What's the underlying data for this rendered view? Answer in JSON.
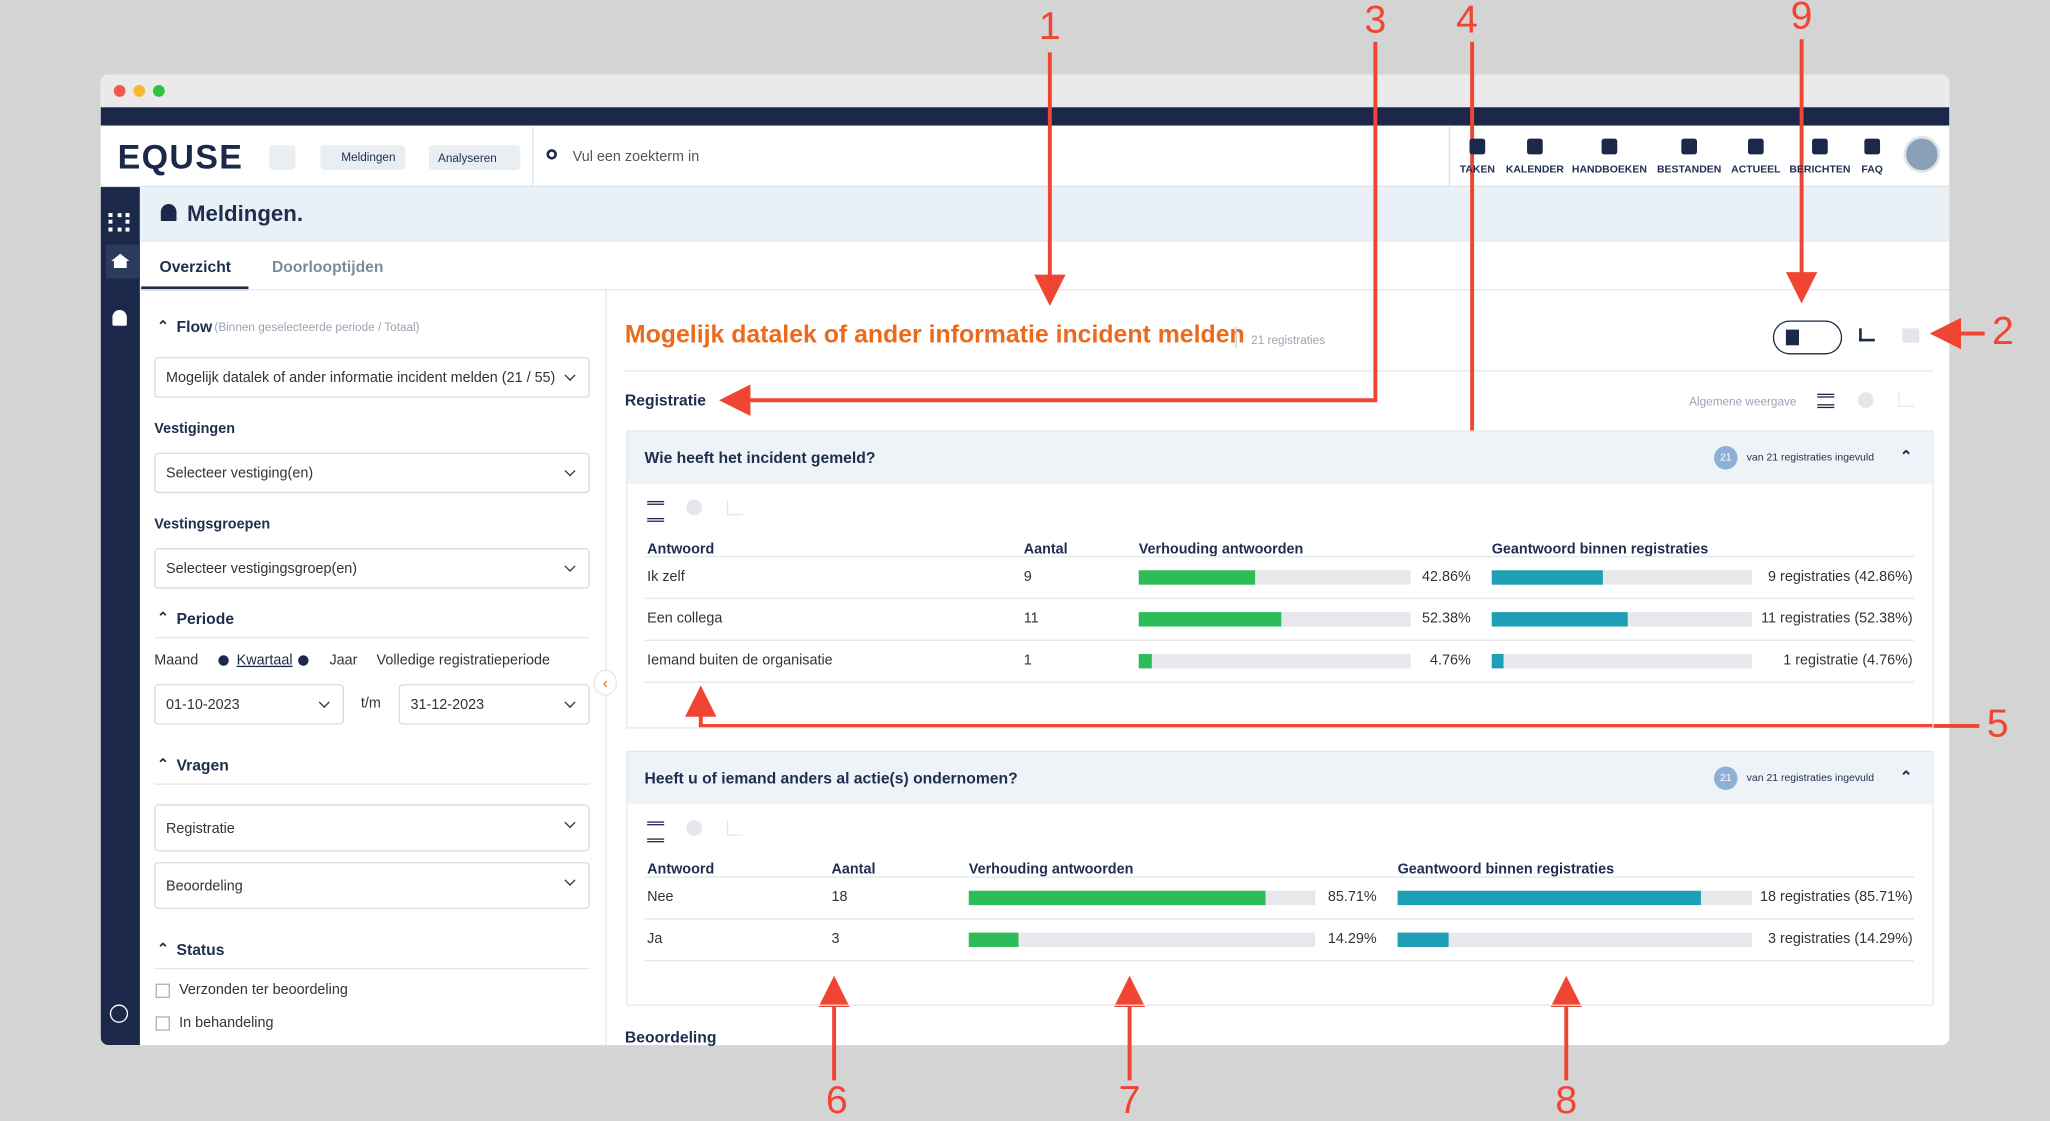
{
  "window": {
    "logo": "EQUSE",
    "breadcrumb": [
      "Meldingen",
      "Analyseren"
    ],
    "search_placeholder": "Vul een zoekterm in",
    "nav": [
      "TAKEN",
      "KALENDER",
      "HANDBOEKEN",
      "BESTANDEN",
      "ACTUEEL",
      "BERICHTEN",
      "FAQ"
    ]
  },
  "page": {
    "title": "Meldingen.",
    "tabs": [
      "Overzicht",
      "Doorlooptijden"
    ]
  },
  "filters": {
    "flow_label": "Flow",
    "flow_note": "(Binnen geselecteerde periode / Totaal)",
    "flow_value": "Mogelijk datalek of ander informatie incident melden (21 / 55)",
    "vestigingen_label": "Vestigingen",
    "vestigingen_value": "Selecteer vestiging(en)",
    "groepen_label": "Vestingsgroepen",
    "groepen_value": "Selecteer vestigingsgroep(en)",
    "periode_label": "Periode",
    "period_options": [
      "Maand",
      "Kwartaal",
      "Jaar",
      "Volledige registratieperiode"
    ],
    "date_from": "01-10-2023",
    "date_sep": "t/m",
    "date_to": "31-12-2023",
    "vragen_label": "Vragen",
    "vragen": [
      "Registratie",
      "Beoordeling"
    ],
    "status_label": "Status",
    "status": [
      "Verzonden ter beoordeling",
      "In behandeling"
    ]
  },
  "main": {
    "title": "Mogelijk datalek of ander informatie incident melden",
    "count": "21 registraties",
    "section": "Registratie",
    "view_label": "Algemene weergave",
    "next_section": "Beoordeling",
    "questions": [
      {
        "title": "Wie heeft het incident gemeld?",
        "badge": "21",
        "badge_text": "van 21 registraties ingevuld",
        "columns": [
          "Antwoord",
          "Aantal",
          "Verhouding antwoorden",
          "Geantwoord binnen registraties"
        ],
        "rows": [
          {
            "answer": "Ik zelf",
            "count": 9,
            "ratio": 42.86,
            "ratio_label": "42.86%",
            "answered": "9 registraties (42.86%)"
          },
          {
            "answer": "Een collega",
            "count": 11,
            "ratio": 52.38,
            "ratio_label": "52.38%",
            "answered": "11 registraties (52.38%)"
          },
          {
            "answer": "Iemand buiten de organisatie",
            "count": 1,
            "ratio": 4.76,
            "ratio_label": "4.76%",
            "answered": "1 registratie (4.76%)"
          }
        ]
      },
      {
        "title": "Heeft u of iemand anders al actie(s) ondernomen?",
        "badge": "21",
        "badge_text": "van 21 registraties ingevuld",
        "columns": [
          "Antwoord",
          "Aantal",
          "Verhouding antwoorden",
          "Geantwoord binnen registraties"
        ],
        "rows": [
          {
            "answer": "Nee",
            "count": 18,
            "ratio": 85.71,
            "ratio_label": "85.71%",
            "answered": "18 registraties (85.71%)"
          },
          {
            "answer": "Ja",
            "count": 3,
            "ratio": 14.29,
            "ratio_label": "14.29%",
            "answered": "3 registraties (14.29%)"
          }
        ]
      }
    ]
  },
  "annotations": [
    "1",
    "2",
    "3",
    "4",
    "5",
    "6",
    "7",
    "8",
    "9"
  ]
}
